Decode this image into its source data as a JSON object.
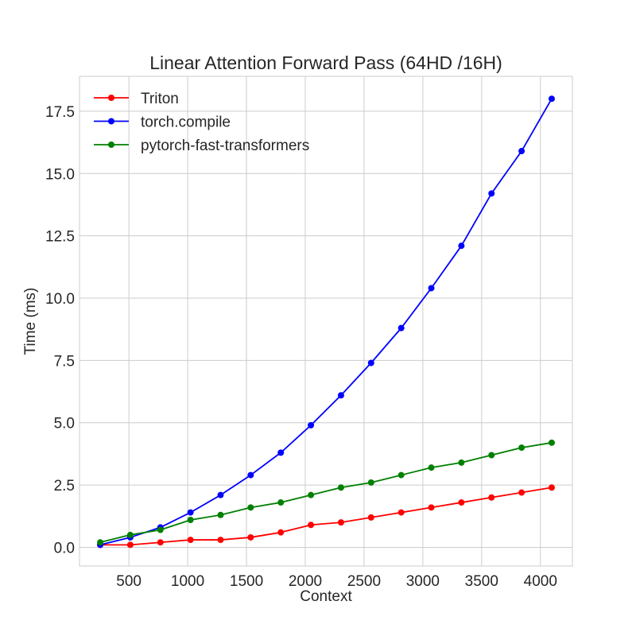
{
  "chart_data": {
    "type": "line",
    "title": "Linear Attention Forward Pass (64HD /16H)",
    "xlabel": "Context",
    "ylabel": "Time (ms)",
    "xlim": [
      80,
      4272
    ],
    "ylim": [
      -0.75,
      18.9
    ],
    "xticks": [
      500,
      1000,
      1500,
      2000,
      2500,
      3000,
      3500,
      4000
    ],
    "yticks": [
      0.0,
      2.5,
      5.0,
      7.5,
      10.0,
      12.5,
      15.0,
      17.5
    ],
    "xtick_labels": [
      "500",
      "1000",
      "1500",
      "2000",
      "2500",
      "3000",
      "3500",
      "4000"
    ],
    "ytick_labels": [
      "0.0",
      "2.5",
      "5.0",
      "7.5",
      "10.0",
      "12.5",
      "15.0",
      "17.5"
    ],
    "grid": true,
    "legend_position": "top-left",
    "x": [
      256,
      512,
      768,
      1024,
      1280,
      1536,
      1792,
      2048,
      2304,
      2560,
      2816,
      3072,
      3328,
      3584,
      3840,
      4096
    ],
    "series": [
      {
        "name": "Triton",
        "color": "#ff0000",
        "values": [
          0.1,
          0.1,
          0.2,
          0.3,
          0.3,
          0.4,
          0.6,
          0.9,
          1.0,
          1.2,
          1.4,
          1.6,
          1.8,
          2.0,
          2.2,
          2.4
        ]
      },
      {
        "name": "torch.compile",
        "color": "#0000ff",
        "values": [
          0.1,
          0.4,
          0.8,
          1.4,
          2.1,
          2.9,
          3.8,
          4.9,
          6.1,
          7.4,
          8.8,
          10.4,
          12.1,
          14.2,
          15.9,
          18.0
        ]
      },
      {
        "name": "pytorch-fast-transformers",
        "color": "#008000",
        "values": [
          0.2,
          0.5,
          0.7,
          1.1,
          1.3,
          1.6,
          1.8,
          2.1,
          2.4,
          2.6,
          2.9,
          3.2,
          3.4,
          3.7,
          4.0,
          4.2
        ]
      }
    ]
  }
}
